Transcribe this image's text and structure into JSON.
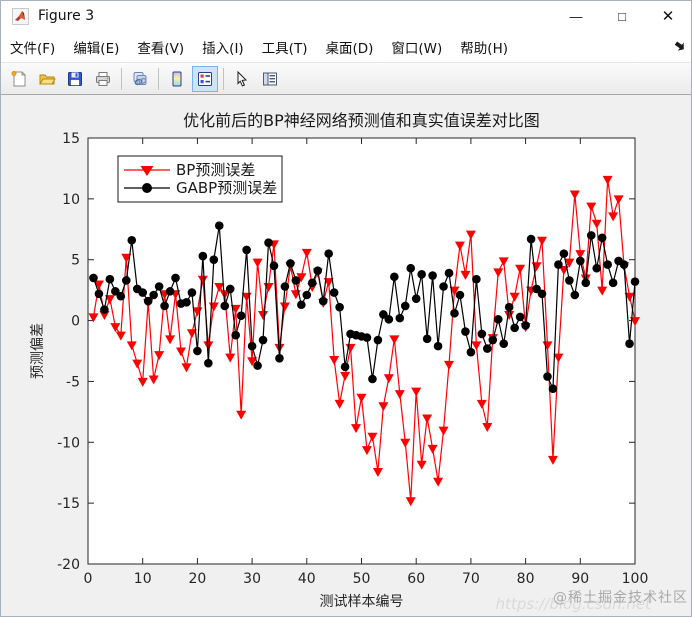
{
  "window": {
    "title": "Figure 3",
    "controls": {
      "minimize": "—",
      "maximize": "□",
      "close": "✕"
    }
  },
  "menu_bar": {
    "items": [
      "文件(F)",
      "编辑(E)",
      "查看(V)",
      "插入(I)",
      "工具(T)",
      "桌面(D)",
      "窗口(W)",
      "帮助(H)"
    ]
  },
  "toolbar": {
    "buttons": [
      "new-figure",
      "open-file",
      "save-figure",
      "print-figure",
      "link-plot",
      "insert-colorbar",
      "insert-legend",
      "edit-plot",
      "plot-tools"
    ],
    "selected_button": "insert-legend",
    "selection_color": "#cde3f6"
  },
  "watermark": {
    "badge": "@稀土掘金技术社区",
    "url": "https://blog.csdn.net"
  },
  "chart_data": {
    "type": "line",
    "title": "优化前后的BP神经网络预测值和真实值误差对比图",
    "xlabel": "测试样本编号",
    "ylabel": "预测偏差",
    "xlim": [
      0,
      100
    ],
    "ylim": [
      -20,
      15
    ],
    "xticks": [
      0,
      10,
      20,
      30,
      40,
      50,
      60,
      70,
      80,
      90,
      100
    ],
    "yticks": [
      -20,
      -15,
      -10,
      -5,
      0,
      5,
      10,
      15
    ],
    "grid": false,
    "legend_position": "inside-top-left",
    "axis_color": "#262626",
    "x_range": {
      "start": 1,
      "end": 100,
      "step": 1
    },
    "series": [
      {
        "name": "BP预测误差",
        "color": "#ff0000",
        "marker": "triangle-down",
        "values": [
          0.3,
          3.0,
          0.5,
          1.8,
          -0.5,
          -1.2,
          5.2,
          -2.0,
          -3.5,
          -5.0,
          1.5,
          -4.8,
          -2.8,
          2.2,
          -1.5,
          2.2,
          -2.5,
          -3.8,
          -1.0,
          0.8,
          3.4,
          -2.0,
          1.2,
          2.8,
          2.2,
          -3.0,
          1.0,
          -7.7,
          2.0,
          -3.3,
          4.8,
          0.5,
          2.8,
          6.3,
          -2.2,
          1.2,
          4.5,
          2.2,
          3.6,
          5.6,
          2.8,
          4.0,
          1.5,
          3.2,
          -3.2,
          -6.8,
          -4.5,
          -2.2,
          -8.8,
          -6.3,
          -10.6,
          -9.5,
          -12.4,
          -7.0,
          -4.7,
          -1.5,
          -6.0,
          -10.0,
          -14.8,
          -5.8,
          -11.8,
          -8.0,
          -10.5,
          -13.2,
          -9.0,
          -3.6,
          2.5,
          6.2,
          3.8,
          7.1,
          -2.0,
          -6.8,
          -8.7,
          -1.4,
          4.0,
          4.9,
          0.5,
          2.0,
          4.3,
          -0.5,
          2.5,
          4.5,
          6.6,
          -2.0,
          -11.4,
          -3.0,
          4.2,
          4.8,
          10.4,
          5.5,
          3.5,
          9.4,
          8.0,
          2.5,
          11.6,
          8.6,
          10.0,
          4.5,
          2.0,
          0.0
        ]
      },
      {
        "name": "GABP预测误差",
        "color": "#000000",
        "marker": "circle",
        "values": [
          3.5,
          2.2,
          0.9,
          3.4,
          2.4,
          2.0,
          3.3,
          6.6,
          2.6,
          2.3,
          1.6,
          2.1,
          2.8,
          1.2,
          2.4,
          3.5,
          1.4,
          1.5,
          2.3,
          -2.5,
          5.3,
          -3.5,
          5.0,
          7.8,
          1.2,
          2.6,
          -1.2,
          0.4,
          5.8,
          -2.1,
          -3.7,
          -1.6,
          6.4,
          4.5,
          -3.1,
          2.8,
          4.7,
          3.3,
          1.3,
          2.1,
          3.1,
          4.1,
          1.6,
          5.5,
          2.3,
          1.1,
          -3.8,
          -1.1,
          -1.2,
          -1.3,
          -1.4,
          -4.8,
          -1.6,
          0.5,
          0.1,
          3.6,
          0.2,
          1.2,
          4.3,
          1.8,
          3.8,
          -1.5,
          3.7,
          -2.1,
          2.8,
          3.9,
          0.6,
          2.1,
          -0.9,
          -2.6,
          3.4,
          -1.1,
          -2.3,
          -1.6,
          0.1,
          -1.9,
          1.1,
          -0.6,
          0.3,
          -0.4,
          6.7,
          2.6,
          2.2,
          -4.6,
          -5.6,
          4.6,
          5.5,
          3.3,
          2.1,
          4.9,
          3.1,
          7.0,
          4.3,
          6.8,
          4.6,
          3.1,
          4.9,
          4.6,
          -1.9,
          3.2
        ]
      }
    ]
  }
}
